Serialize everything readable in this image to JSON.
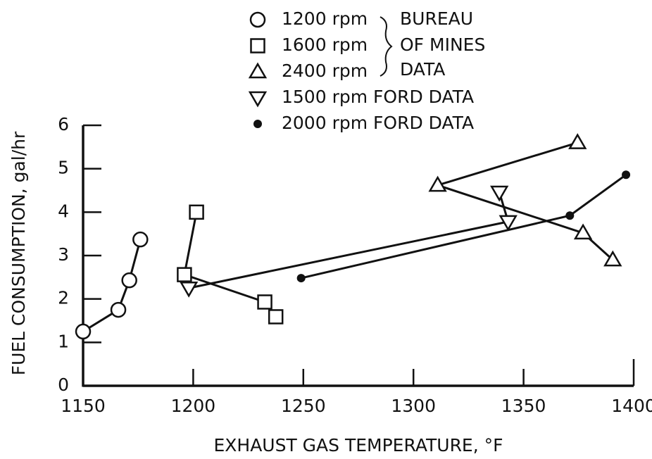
{
  "chart_data": {
    "type": "scatter",
    "x_label": "EXHAUST GAS TEMPERATURE, °F",
    "y_label": "FUEL CONSUMPTION, gal/hr",
    "annotation": [
      "BUREAU",
      "OF MINES",
      "DATA"
    ],
    "xlim": [
      1150,
      1400
    ],
    "ylim": [
      0,
      6
    ],
    "xticks": [
      1150,
      1200,
      1250,
      1300,
      1350,
      1400
    ],
    "yticks": [
      0,
      1,
      2,
      3,
      4,
      5,
      6
    ],
    "color": "#111111",
    "series": [
      {
        "name": "1200 rpm",
        "marker": "circle",
        "x": [
          1150,
          1166,
          1171,
          1176
        ],
        "values": [
          1.25,
          1.75,
          2.43,
          3.37
        ]
      },
      {
        "name": "1600 rpm",
        "marker": "square",
        "x": [
          1201.5,
          1196,
          1232.5,
          1237.5
        ],
        "values": [
          4.0,
          2.56,
          1.93,
          1.59
        ]
      },
      {
        "name": "2400 rpm",
        "marker": "triangle-up",
        "x": [
          1374.5,
          1311,
          1377,
          1390.5
        ],
        "values": [
          5.6,
          4.62,
          3.52,
          2.9
        ]
      },
      {
        "name": "1500 rpm FORD DATA",
        "marker": "triangle-down",
        "x": [
          1198,
          1343,
          1339
        ],
        "values": [
          2.25,
          3.78,
          4.46
        ]
      },
      {
        "name": "2000 rpm FORD DATA",
        "marker": "dot",
        "x": [
          1249,
          1371,
          1396.5
        ],
        "values": [
          2.48,
          3.92,
          4.86
        ]
      }
    ]
  }
}
